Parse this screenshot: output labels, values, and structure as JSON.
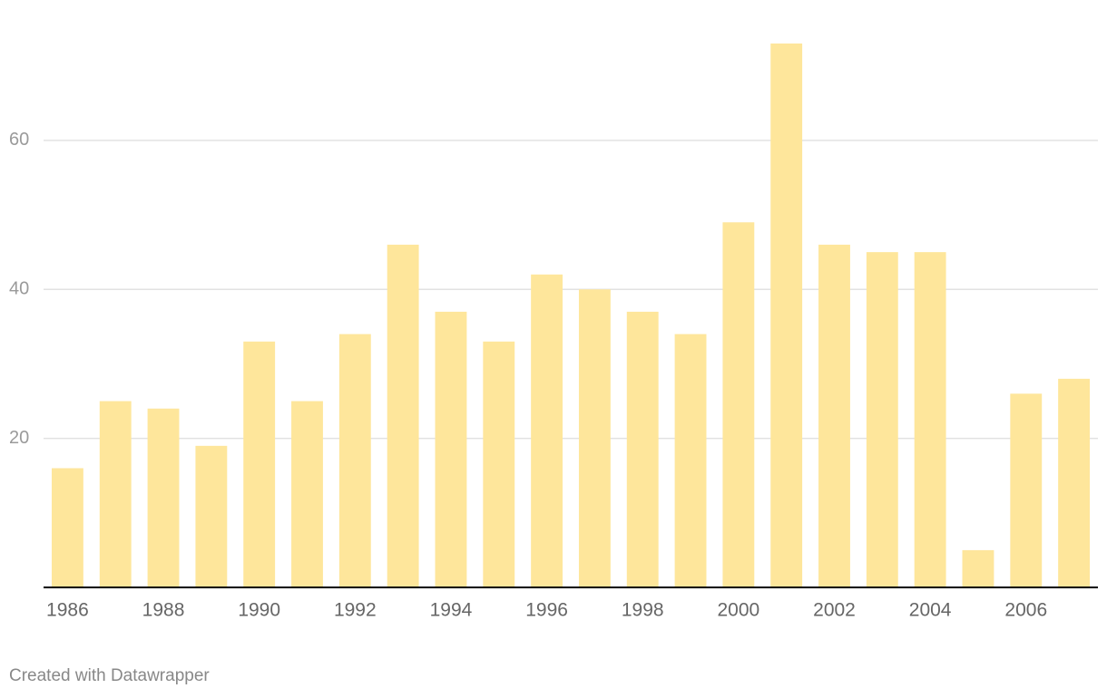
{
  "chart_data": {
    "type": "bar",
    "categories": [
      "1986",
      null,
      "1988",
      null,
      "1990",
      null,
      "1992",
      null,
      "1994",
      null,
      "1996",
      null,
      "1998",
      null,
      "2000",
      null,
      "2002",
      null,
      "2004",
      null,
      "2006",
      null
    ],
    "values": [
      16,
      25,
      24,
      19,
      33,
      25,
      34,
      46,
      37,
      33,
      42,
      40,
      37,
      34,
      49,
      73,
      46,
      45,
      45,
      5,
      26,
      28
    ],
    "color": "#fee69b",
    "ylim": [
      0,
      73
    ],
    "yticks": [
      20,
      40,
      60
    ],
    "grid": true,
    "footer": "Created with Datawrapper"
  }
}
